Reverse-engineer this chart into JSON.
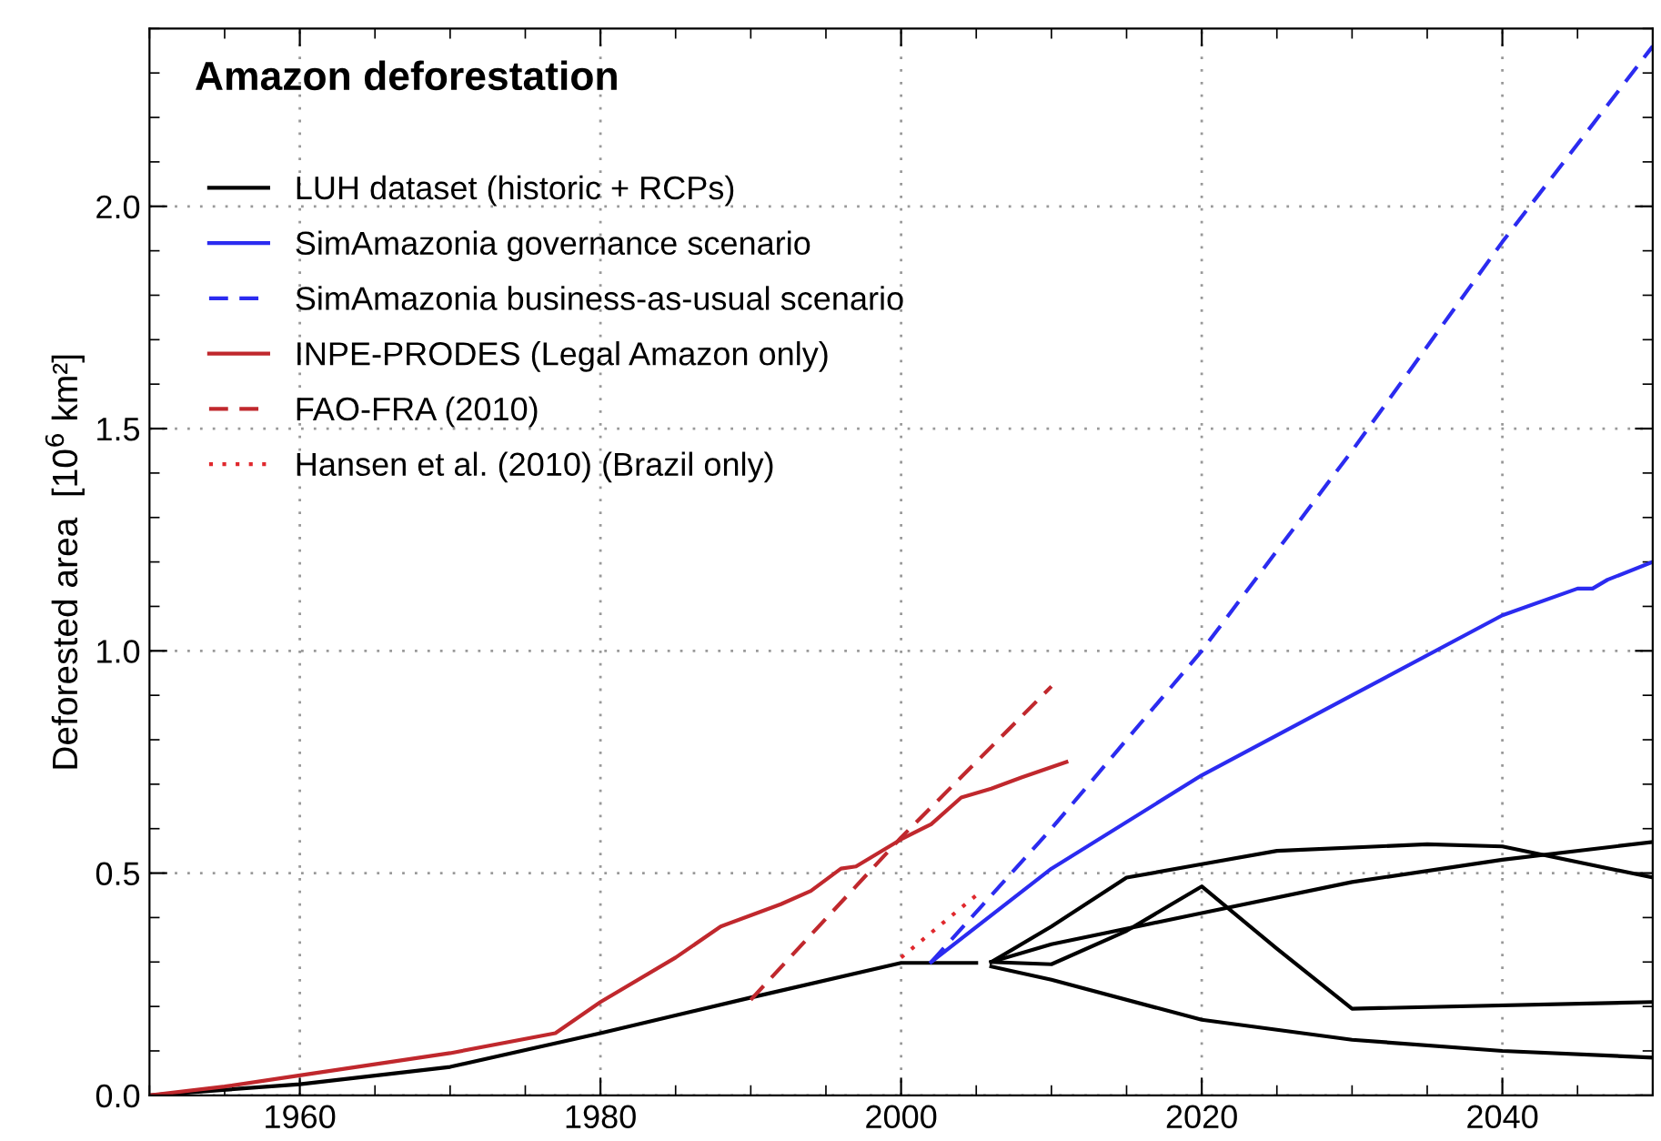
{
  "chart_data": {
    "type": "line",
    "title": "Amazon deforestation",
    "ylabel": "Deforested area  [10$^{6}$ km²]",
    "xlim": [
      1950,
      2050
    ],
    "xticks": [
      1960,
      1980,
      2000,
      2020,
      2040
    ],
    "ylim": [
      0,
      2.4
    ],
    "yticks": [
      {
        "value": 0,
        "label": "0.0"
      },
      0.5,
      {
        "value": 1,
        "label": "1.0"
      },
      1.5,
      {
        "value": 2,
        "label": "2.0"
      }
    ],
    "grid": true,
    "legend": "top left",
    "marker": "none",
    "series": [
      {
        "name": "LUH dataset (historic + RCPs)",
        "color": "#000000",
        "line_style": "solid",
        "x": [
          1950,
          1960,
          1970,
          1980,
          1990,
          2000,
          2005
        ],
        "values": [
          0,
          0.025,
          0.064,
          0.14,
          0.22,
          0.298,
          0.298
        ]
      },
      {
        "color": "#000000",
        "line_style": "solid",
        "x": [
          2006,
          2010,
          2015,
          2020,
          2025,
          2035,
          2040,
          2050
        ],
        "values": [
          0.3,
          0.38,
          0.49,
          0.52,
          0.55,
          0.565,
          0.56,
          0.49
        ]
      },
      {
        "color": "#000000",
        "line_style": "solid",
        "x": [
          2006,
          2010,
          2020,
          2030,
          2040,
          2050
        ],
        "values": [
          0.3,
          0.34,
          0.41,
          0.48,
          0.53,
          0.57
        ]
      },
      {
        "color": "#000000",
        "line_style": "solid",
        "x": [
          2006,
          2010,
          2015,
          2020,
          2025,
          2030,
          2050
        ],
        "values": [
          0.3,
          0.295,
          0.37,
          0.47,
          0.33,
          0.195,
          0.21
        ]
      },
      {
        "color": "#000000",
        "line_style": "solid",
        "x": [
          2006,
          2010,
          2020,
          2030,
          2040,
          2050
        ],
        "values": [
          0.29,
          0.26,
          0.17,
          0.125,
          0.1,
          0.085
        ]
      },
      {
        "name": "SimAmazonia governance scenario",
        "color": "#2b2bf0",
        "line_style": "solid",
        "x": [
          2002,
          2010,
          2020,
          2030,
          2040,
          2045,
          2046,
          2047,
          2050
        ],
        "values": [
          0.3,
          0.51,
          0.72,
          0.9,
          1.08,
          1.14,
          1.14,
          1.16,
          1.2
        ]
      },
      {
        "name": "SimAmazonia business-as-usual scenario",
        "color": "#2b2bf0",
        "line_style": "dashed",
        "x": [
          2002,
          2010,
          2020,
          2030,
          2040,
          2050
        ],
        "values": [
          0.3,
          0.6,
          1.0,
          1.45,
          1.92,
          2.36
        ]
      },
      {
        "name": "INPE-PRODES (Legal Amazon only)",
        "color": "#c0282d",
        "line_style": "solid",
        "x": [
          1950,
          1955,
          1960,
          1970,
          1977,
          1980,
          1985,
          1988,
          1990,
          1992,
          1994,
          1995,
          1996,
          1997,
          2000,
          2002,
          2004,
          2006,
          2008,
          2011
        ],
        "values": [
          0,
          0.02,
          0.045,
          0.095,
          0.14,
          0.21,
          0.31,
          0.38,
          0.405,
          0.43,
          0.46,
          0.485,
          0.51,
          0.515,
          0.576,
          0.61,
          0.67,
          0.69,
          0.715,
          0.75
        ]
      },
      {
        "name": "FAO-FRA (2010)",
        "color": "#c0282d",
        "line_style": "dashed",
        "x": [
          1990,
          2000,
          2005,
          2010
        ],
        "values": [
          0.215,
          0.58,
          0.75,
          0.92
        ]
      },
      {
        "name": "Hansen et al. (2010) (Brazil only)",
        "color": "#e0282d",
        "line_style": "dotted",
        "x": [
          2000,
          2005
        ],
        "values": [
          0.31,
          0.45
        ]
      }
    ]
  }
}
